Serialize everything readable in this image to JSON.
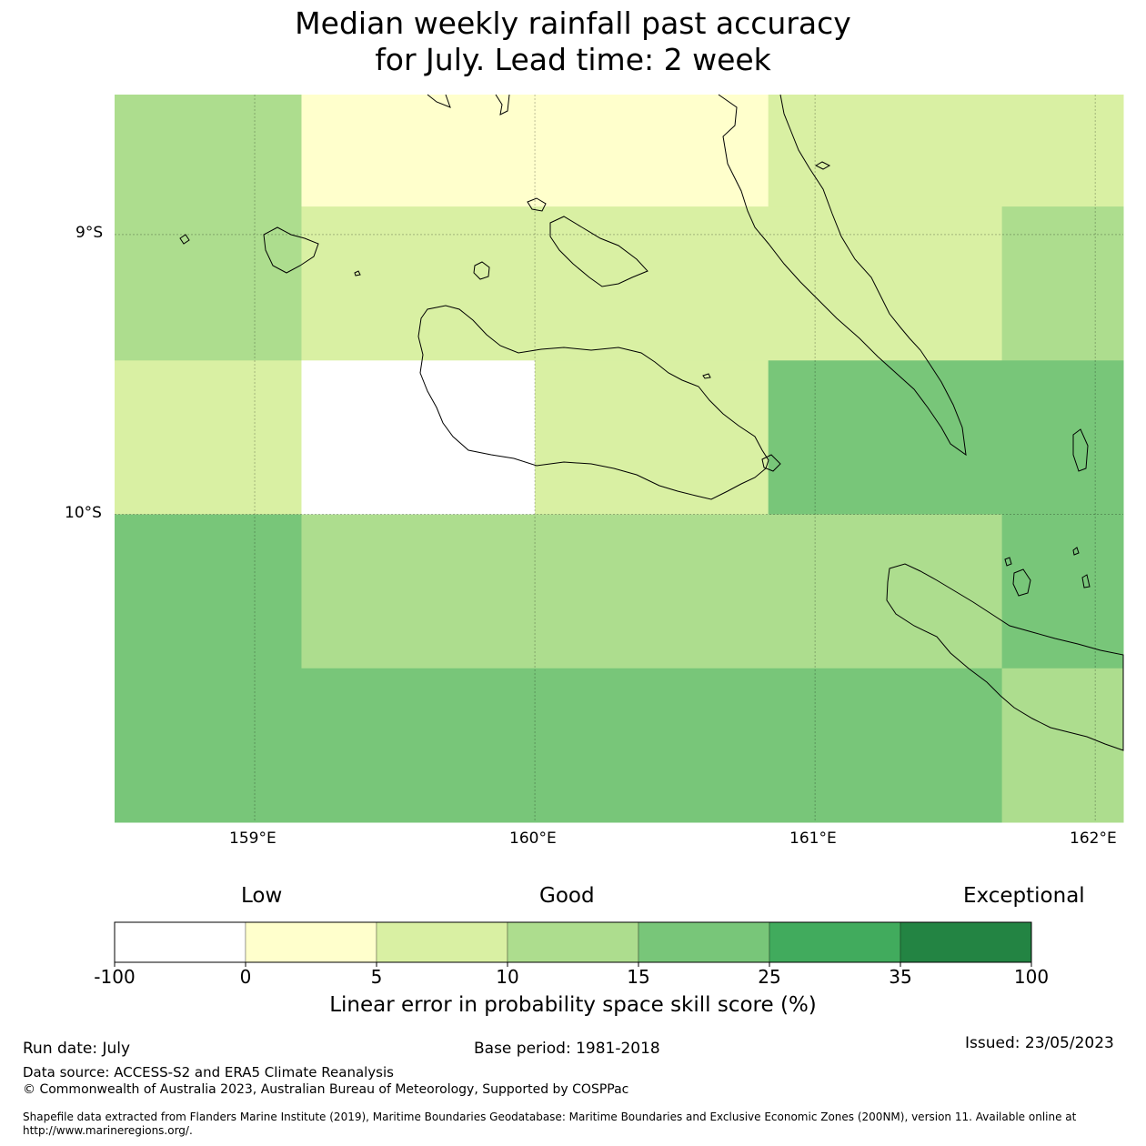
{
  "title": {
    "line1": "Median weekly rainfall past accuracy",
    "line2": "for July. Lead time: 2 week"
  },
  "map": {
    "lat_labels": [
      "9°S",
      "10°S"
    ],
    "lon_labels": [
      "159°E",
      "160°E",
      "161°E",
      "162°E"
    ],
    "extent": {
      "lon_min": 158.5,
      "lon_max": 162.1,
      "lat_max": -8.5,
      "lat_min": -11.1
    },
    "grid_lons": [
      159,
      160,
      161,
      162
    ],
    "grid_lats": [
      -9,
      -10
    ],
    "cells": [
      {
        "lon0": 158.5,
        "lon1": 159.167,
        "lat0": -8.5,
        "lat1": -8.9,
        "class": 3
      },
      {
        "lon0": 159.167,
        "lon1": 160.833,
        "lat0": -8.5,
        "lat1": -8.9,
        "class": 1
      },
      {
        "lon0": 160.833,
        "lon1": 162.1,
        "lat0": -8.5,
        "lat1": -8.9,
        "class": 2
      },
      {
        "lon0": 158.5,
        "lon1": 159.167,
        "lat0": -8.9,
        "lat1": -9.45,
        "class": 3
      },
      {
        "lon0": 159.167,
        "lon1": 161.667,
        "lat0": -8.9,
        "lat1": -9.45,
        "class": 2
      },
      {
        "lon0": 161.667,
        "lon1": 162.1,
        "lat0": -8.9,
        "lat1": -9.45,
        "class": 3
      },
      {
        "lon0": 158.5,
        "lon1": 159.167,
        "lat0": -9.45,
        "lat1": -10.0,
        "class": 2
      },
      {
        "lon0": 159.167,
        "lon1": 160.0,
        "lat0": -9.45,
        "lat1": -10.0,
        "class": 0
      },
      {
        "lon0": 160.0,
        "lon1": 160.833,
        "lat0": -9.45,
        "lat1": -10.0,
        "class": 2
      },
      {
        "lon0": 160.833,
        "lon1": 162.1,
        "lat0": -9.45,
        "lat1": -10.0,
        "class": 4
      },
      {
        "lon0": 158.5,
        "lon1": 159.167,
        "lat0": -10.0,
        "lat1": -10.55,
        "class": 4
      },
      {
        "lon0": 159.167,
        "lon1": 161.667,
        "lat0": -10.0,
        "lat1": -10.55,
        "class": 3
      },
      {
        "lon0": 161.667,
        "lon1": 162.1,
        "lat0": -10.0,
        "lat1": -10.55,
        "class": 4
      },
      {
        "lon0": 158.5,
        "lon1": 161.667,
        "lat0": -10.55,
        "lat1": -11.1,
        "class": 4
      },
      {
        "lon0": 161.667,
        "lon1": 162.1,
        "lat0": -10.55,
        "lat1": -11.1,
        "class": 3
      }
    ]
  },
  "colorbar": {
    "words": [
      "Low",
      "Good",
      "Exceptional"
    ],
    "ticks": [
      "-100",
      "0",
      "5",
      "10",
      "15",
      "25",
      "35",
      "100"
    ],
    "colors": [
      "#ffffff",
      "#ffffcc",
      "#d9f0a3",
      "#addd8e",
      "#78c679",
      "#41ab5d",
      "#238443"
    ],
    "label": "Linear error in probability space skill score (%)"
  },
  "footer": {
    "run_date": "Run date: July",
    "base_period": "Base period: 1981-2018",
    "issued": "Issued: 23/05/2023",
    "data_source": "Data source: ACCESS-S2 and ERA5 Climate Reanalysis",
    "copyright": "© Commonwealth of Australia 2023, Australian Bureau of Meteorology, Supported by COSPPac",
    "shapefile_line1": "Shapefile data extracted from Flanders Marine Institute (2019), Maritime Boundaries Geodatabase: Maritime Boundaries and Exclusive Economic Zones (200NM), version 11. Available online at",
    "shapefile_line2": "http://www.marineregions.org/."
  }
}
